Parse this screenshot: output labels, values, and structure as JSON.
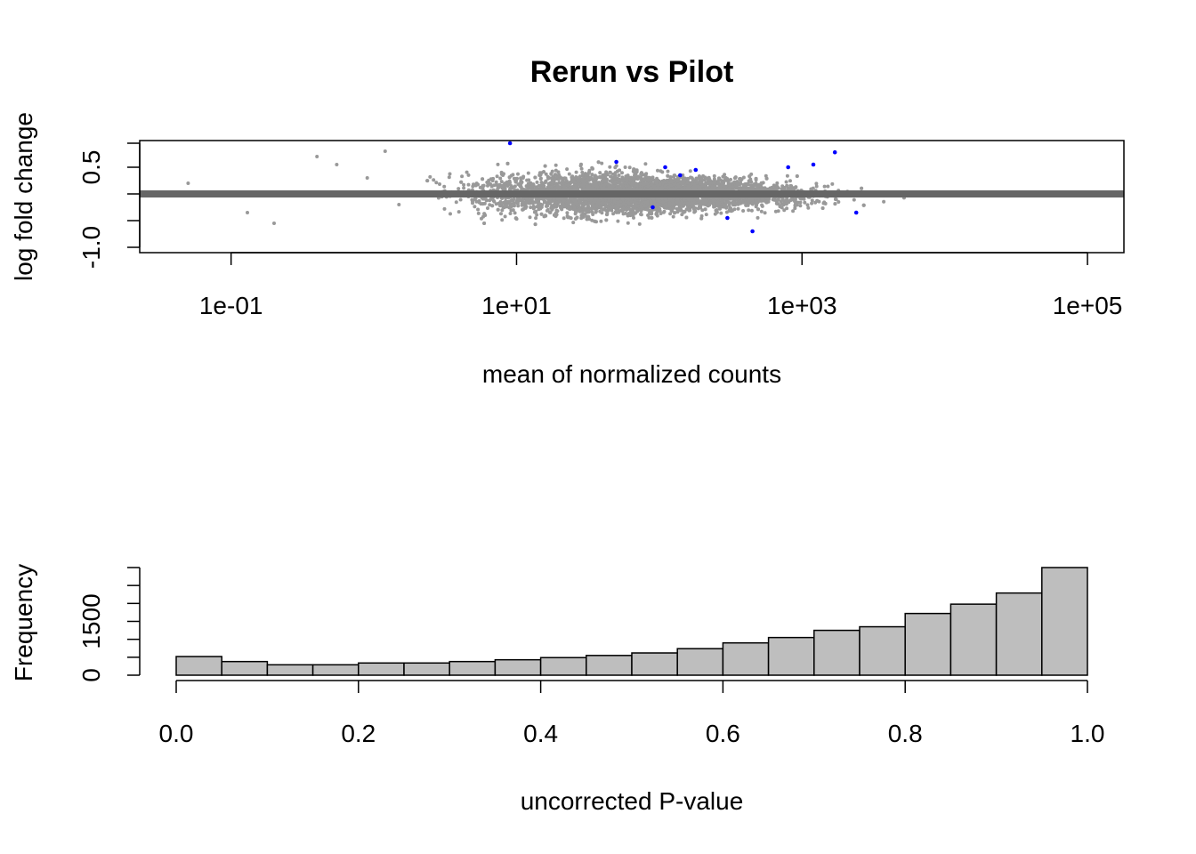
{
  "chart_data": [
    {
      "type": "scatter",
      "title": "Rerun vs Pilot",
      "xlabel": "mean of normalized counts",
      "ylabel": "log fold change",
      "x_scale": "log10",
      "xlim": [
        0.0229,
        180000
      ],
      "ylim": [
        -1.1,
        1.0
      ],
      "x_ticks": [
        "1e-01",
        "1e+01",
        "1e+03",
        "1e+05"
      ],
      "x_tick_values": [
        0.1,
        10,
        1000,
        100000
      ],
      "y_ticks": [
        "-1.0",
        "0.5"
      ],
      "y_tick_values": [
        -1.0,
        -0.5,
        0.0,
        0.5,
        1.0
      ],
      "reference_line": 0,
      "series": [],
      "colors": {
        "points": "#999999",
        "significant": "#0000ff",
        "reference_line": "#666666",
        "out_of_range": "#999999"
      },
      "out_of_range_marker": "triangle",
      "grid": false,
      "legend": "none"
    },
    {
      "type": "bar",
      "title": "",
      "xlabel": "uncorrected P-value",
      "ylabel": "Frequency",
      "bin_edges": [
        0.0,
        0.05,
        0.1,
        0.15,
        0.2,
        0.25,
        0.3,
        0.35,
        0.4,
        0.45,
        0.5,
        0.55,
        0.6,
        0.65,
        0.7,
        0.75,
        0.8,
        0.85,
        0.9,
        0.95,
        1.0
      ],
      "values": [
        520,
        380,
        290,
        290,
        340,
        340,
        380,
        430,
        490,
        550,
        620,
        740,
        900,
        1050,
        1250,
        1350,
        1720,
        1980,
        2290,
        3000
      ],
      "x_ticks": [
        "0.0",
        "0.2",
        "0.4",
        "0.6",
        "0.8",
        "1.0"
      ],
      "x_tick_values": [
        0.0,
        0.2,
        0.4,
        0.6,
        0.8,
        1.0
      ],
      "y_ticks": [
        "0",
        "1500"
      ],
      "y_tick_values": [
        0,
        500,
        1000,
        1500,
        2000,
        2500,
        3000
      ],
      "xlim": [
        0,
        1
      ],
      "ylim": [
        0,
        3000
      ],
      "colors": {
        "bars": "#bebebe",
        "bar_border": "#000000"
      },
      "grid": false,
      "legend": "none"
    }
  ]
}
